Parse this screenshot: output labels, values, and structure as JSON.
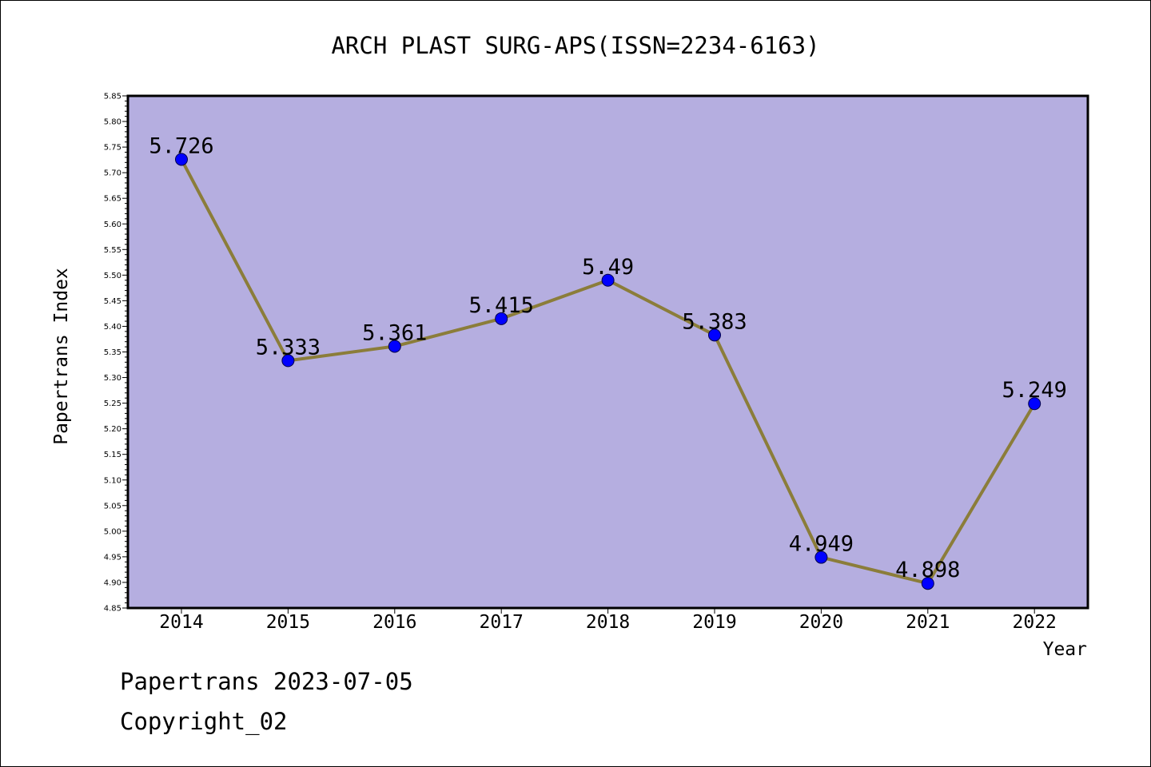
{
  "chart_data": {
    "type": "line",
    "title": "ARCH PLAST SURG-APS(ISSN=2234-6163)",
    "xlabel": "Year",
    "ylabel": "Papertrans Index",
    "categories": [
      "2014",
      "2015",
      "2016",
      "2017",
      "2018",
      "2019",
      "2020",
      "2021",
      "2022"
    ],
    "series": [
      {
        "values": [
          5.726,
          5.333,
          5.361,
          5.415,
          5.49,
          5.383,
          4.949,
          4.898,
          5.249
        ],
        "data_labels": [
          "5.726",
          "5.333",
          "5.361",
          "5.415",
          "5.49",
          "5.383",
          "4.949",
          "4.898",
          "5.249"
        ]
      }
    ],
    "ylim": [
      4.85,
      5.85
    ],
    "y_tick_step": 0.05,
    "y_tick_labels": [
      "4.85",
      "4.90",
      "4.95",
      "5.00",
      "5.05",
      "5.10",
      "5.15",
      "5.20",
      "5.25",
      "5.30",
      "5.35",
      "5.40",
      "5.45",
      "5.50",
      "5.55",
      "5.60",
      "5.65",
      "5.70",
      "5.75",
      "5.80",
      "5.85"
    ],
    "grid": false,
    "legend": "none",
    "colors": {
      "plot_background": "#b5aee0",
      "line": "#8b7d3a",
      "marker": "#0000ff",
      "axis": "#000000"
    }
  },
  "footer": {
    "line1": "Papertrans 2023-07-05",
    "line2": "Copyright_02"
  }
}
